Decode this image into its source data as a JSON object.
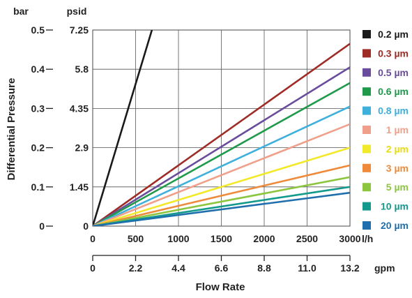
{
  "chart_data": {
    "type": "line",
    "title": "",
    "xlabel": "Flow Rate",
    "ylabel": "Differential Pressure",
    "x_primary_unit": "l/h",
    "x_secondary_unit": "gpm",
    "y_left_unit": "bar",
    "y_right_unit": "psid",
    "xlim": [
      0,
      3000
    ],
    "ylim": [
      0,
      0.5
    ],
    "x_ticks": [
      "0",
      "500",
      "1000",
      "1500",
      "2000",
      "2500",
      "3000"
    ],
    "x_secondary_ticks": [
      "0",
      "2.2",
      "4.4",
      "6.6",
      "8.8",
      "11.0",
      "13.2"
    ],
    "y_ticks_bar": [
      "0",
      "0.1",
      "0.2",
      "0.3",
      "0.4",
      "0.5"
    ],
    "y_ticks_psid": [
      "0",
      "1.45",
      "2.9",
      "4.35",
      "5.8",
      "7.25"
    ],
    "grid": true,
    "legend_position": "right",
    "series": [
      {
        "name": "0.2 µm",
        "color": "#1a1a1a",
        "x": [
          0,
          690
        ],
        "y": [
          0,
          0.5
        ]
      },
      {
        "name": "0.3 µm",
        "color": "#9e2b25",
        "x": [
          0,
          3000
        ],
        "y": [
          0,
          0.465
        ]
      },
      {
        "name": "0.5 µm",
        "color": "#6a4c9c",
        "x": [
          0,
          3000
        ],
        "y": [
          0,
          0.405
        ]
      },
      {
        "name": "0.6 µm",
        "color": "#1e9a4a",
        "x": [
          0,
          3000
        ],
        "y": [
          0,
          0.365
        ]
      },
      {
        "name": "0.8 µm",
        "color": "#3fb0dc",
        "x": [
          0,
          3000
        ],
        "y": [
          0,
          0.305
        ]
      },
      {
        "name": "1 µm",
        "color": "#f0a08a",
        "x": [
          0,
          3000
        ],
        "y": [
          0,
          0.26
        ]
      },
      {
        "name": "2 µm",
        "color": "#f2e92a",
        "x": [
          0,
          3000
        ],
        "y": [
          0,
          0.2
        ]
      },
      {
        "name": "3 µm",
        "color": "#ee8a3a",
        "x": [
          0,
          3000
        ],
        "y": [
          0,
          0.155
        ]
      },
      {
        "name": "5 µm",
        "color": "#8cc63f",
        "x": [
          0,
          3000
        ],
        "y": [
          0,
          0.125
        ]
      },
      {
        "name": "10 µm",
        "color": "#139a8c",
        "x": [
          0,
          3000
        ],
        "y": [
          0,
          0.1
        ]
      },
      {
        "name": "20 µm",
        "color": "#1f6fae",
        "x": [
          0,
          3000
        ],
        "y": [
          0,
          0.085
        ]
      }
    ]
  }
}
